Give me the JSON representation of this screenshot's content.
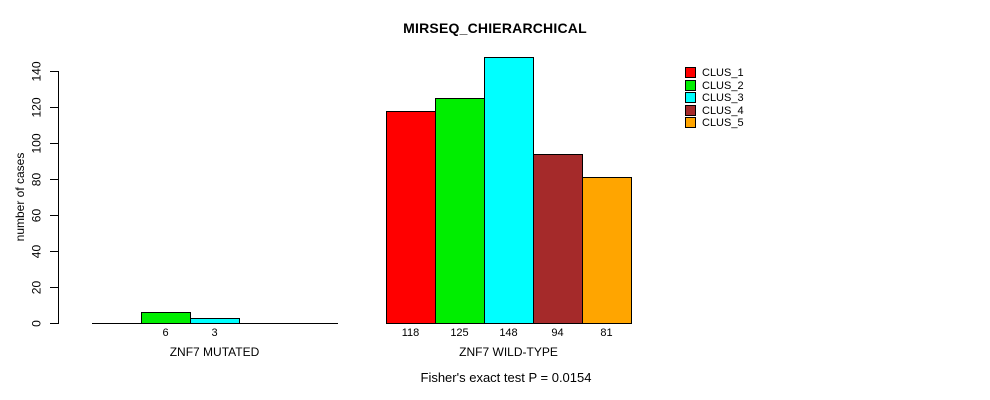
{
  "chart_data": {
    "type": "bar",
    "title": "MIRSEQ_CHIERARCHICAL",
    "ylabel": "number of cases",
    "xlabel": "",
    "yticks": [
      0,
      20,
      40,
      60,
      80,
      100,
      120,
      140
    ],
    "ylim": [
      0,
      148
    ],
    "grid": false,
    "legend_position": "top-right",
    "categories": [
      "ZNF7 MUTATED",
      "ZNF7 WILD-TYPE"
    ],
    "series": [
      {
        "name": "CLUS_1",
        "color": "#FF0000",
        "values": [
          0,
          118
        ]
      },
      {
        "name": "CLUS_2",
        "color": "#00EE00",
        "values": [
          6,
          125
        ]
      },
      {
        "name": "CLUS_3",
        "color": "#00FFFF",
        "values": [
          3,
          148
        ]
      },
      {
        "name": "CLUS_4",
        "color": "#A52A2A",
        "values": [
          0,
          94
        ]
      },
      {
        "name": "CLUS_5",
        "color": "#FFA500",
        "values": [
          0,
          81
        ]
      }
    ],
    "value_labels_shown_for_nonzero_bars_only": true,
    "annotation": "Fisher's exact test P = 0.0154"
  },
  "colors": {
    "background": "#FFFFFF",
    "axis": "#000000",
    "text": "#000000"
  }
}
